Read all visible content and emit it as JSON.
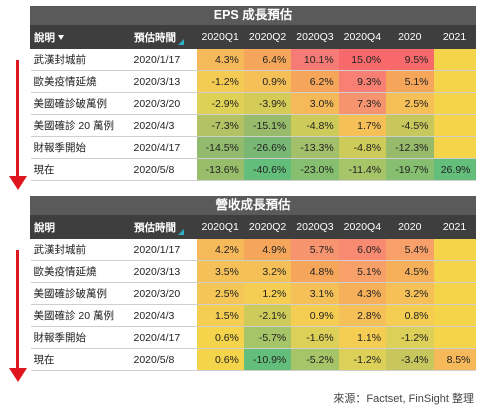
{
  "columns": {
    "desc": "說明",
    "date": "預估時間",
    "q1": "2020Q1",
    "q2": "2020Q2",
    "q3": "2020Q3",
    "q4": "2020Q4",
    "y2020": "2020",
    "y2021": "2021"
  },
  "eps": {
    "title": "EPS 成長預估",
    "rows": [
      {
        "label": "武漢封城前",
        "date": "2020/1/17",
        "values": [
          "4.3%",
          "6.4%",
          "10.1%",
          "15.0%",
          "9.5%",
          ""
        ],
        "colors": [
          "#f6b95a",
          "#f6a65a",
          "#f67b76",
          "#f8696b",
          "#f8696b",
          "#f4d44a"
        ]
      },
      {
        "label": "歐美疫情延燒",
        "date": "2020/3/13",
        "values": [
          "-1.2%",
          "0.9%",
          "6.2%",
          "9.3%",
          "5.1%",
          ""
        ],
        "colors": [
          "#f4cb52",
          "#f6c058",
          "#f6a65a",
          "#f77f74",
          "#f6a65a",
          "#f4d44a"
        ]
      },
      {
        "label": "美國確診破萬例",
        "date": "2020/3/20",
        "values": [
          "-2.9%",
          "-3.9%",
          "3.0%",
          "7.3%",
          "2.5%",
          ""
        ],
        "colors": [
          "#dfd056",
          "#d5cc58",
          "#f6b95a",
          "#f79470",
          "#f6c058",
          "#f4d44a"
        ]
      },
      {
        "label": "美國確診 20 萬例",
        "date": "2020/4/3",
        "values": [
          "-7.3%",
          "-15.1%",
          "-4.8%",
          "1.7%",
          "-4.5%",
          ""
        ],
        "colors": [
          "#b3c264",
          "#97ba6b",
          "#cdcc5a",
          "#f6c058",
          "#c7c75d",
          "#f4d44a"
        ]
      },
      {
        "label": "財報季開始",
        "date": "2020/4/17",
        "values": [
          "-14.5%",
          "-26.6%",
          "-13.3%",
          "-4.8%",
          "-12.3%",
          ""
        ],
        "colors": [
          "#92bb6d",
          "#79b874",
          "#a2bf69",
          "#cdcc5a",
          "#97ba6b",
          "#f4d44a"
        ]
      },
      {
        "label": "現在",
        "date": "2020/5/8",
        "values": [
          "-13.6%",
          "-40.6%",
          "-23.0%",
          "-11.4%",
          "-19.7%",
          "26.9%"
        ],
        "colors": [
          "#99be6b",
          "#63be7b",
          "#86bf70",
          "#a6c468",
          "#86bf70",
          "#63be7b"
        ]
      }
    ]
  },
  "rev": {
    "title": "營收成長預估",
    "rows": [
      {
        "label": "武漢封城前",
        "date": "2020/1/17",
        "values": [
          "4.2%",
          "4.9%",
          "5.7%",
          "6.0%",
          "5.4%",
          ""
        ],
        "colors": [
          "#f6b95a",
          "#f6a65a",
          "#f79470",
          "#f88a72",
          "#f8a06a",
          "#f4d44a"
        ]
      },
      {
        "label": "歐美疫情延燒",
        "date": "2020/3/13",
        "values": [
          "3.5%",
          "3.2%",
          "4.8%",
          "5.1%",
          "4.5%",
          ""
        ],
        "colors": [
          "#f6c058",
          "#f6c058",
          "#f6a65a",
          "#f7a06a",
          "#f6b05a",
          "#f4d44a"
        ]
      },
      {
        "label": "美國確診破萬例",
        "date": "2020/3/20",
        "values": [
          "2.5%",
          "1.2%",
          "3.1%",
          "4.3%",
          "3.2%",
          ""
        ],
        "colors": [
          "#f4c658",
          "#f4cd52",
          "#f6c058",
          "#f6b05a",
          "#f6c058",
          "#f4d44a"
        ]
      },
      {
        "label": "美國確診 20 萬例",
        "date": "2020/4/3",
        "values": [
          "1.5%",
          "-2.1%",
          "0.9%",
          "2.8%",
          "0.8%",
          ""
        ],
        "colors": [
          "#f4cd52",
          "#cfcb5b",
          "#f4cd52",
          "#f6c058",
          "#f4cd52",
          "#f4d44a"
        ]
      },
      {
        "label": "財報季開始",
        "date": "2020/4/17",
        "values": [
          "0.6%",
          "-5.7%",
          "-1.6%",
          "1.1%",
          "-1.2%",
          ""
        ],
        "colors": [
          "#f4d44a",
          "#a6c468",
          "#dcd058",
          "#f4cd52",
          "#dcd058",
          "#f4d44a"
        ]
      },
      {
        "label": "現在",
        "date": "2020/5/8",
        "values": [
          "0.6%",
          "-10.9%",
          "-5.2%",
          "-1.2%",
          "-3.4%",
          "8.5%"
        ],
        "colors": [
          "#f4d44a",
          "#63be7b",
          "#a6c468",
          "#dcd058",
          "#c7c75d",
          "#f6b95a"
        ]
      }
    ]
  },
  "source": "來源：Factset, FinSight 整理"
}
